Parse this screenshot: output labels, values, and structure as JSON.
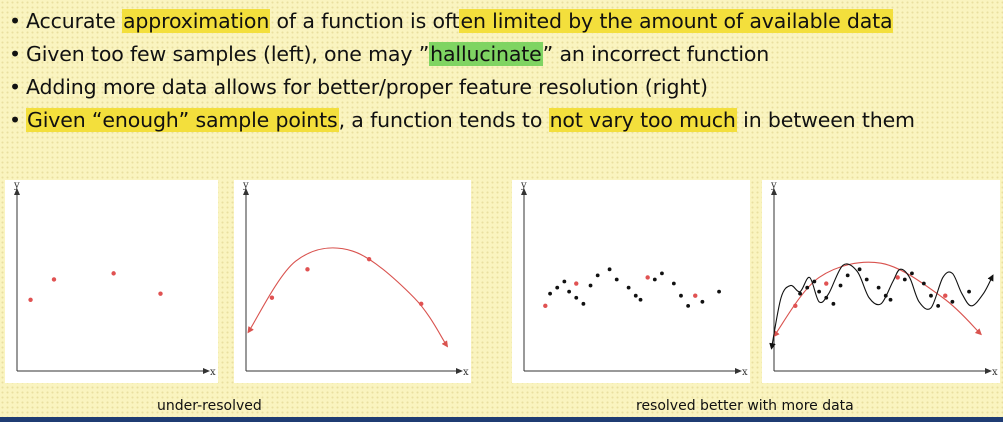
{
  "colors": {
    "highlight_yellow": "#f3df3c",
    "highlight_green": "#7fd462",
    "point_red": "#e05252",
    "curve_red": "#d9534f",
    "point_black": "#111111"
  },
  "bullets": [
    {
      "marker": "•",
      "segments": [
        {
          "text": "Accurate ",
          "hl": ""
        },
        {
          "text": "approximation",
          "hl": "yellow"
        },
        {
          "text": " of a function is oft",
          "hl": ""
        },
        {
          "text": "en limited by the amount of available data",
          "hl": "yellow"
        }
      ]
    },
    {
      "marker": "•",
      "segments": [
        {
          "text": "Given too few samples (left), one may ”",
          "hl": ""
        },
        {
          "text": "hallucinate",
          "hl": "green"
        },
        {
          "text": "” an incorrect function",
          "hl": ""
        }
      ]
    },
    {
      "marker": "•",
      "segments": [
        {
          "text": "Adding more data allows for better/proper feature resolution (right)",
          "hl": ""
        }
      ]
    },
    {
      "marker": "•",
      "segments": [
        {
          "text": "Given “enough” sample points",
          "hl": "yellow"
        },
        {
          "text": ", a function tends to ",
          "hl": ""
        },
        {
          "text": "not vary too much",
          "hl": "yellow"
        },
        {
          "text": " in between them",
          "hl": ""
        }
      ]
    }
  ],
  "plots": {
    "axis_y_label": "y",
    "axis_x_label": "x",
    "under_points": [
      [
        0.12,
        0.59
      ],
      [
        0.23,
        0.49
      ],
      [
        0.51,
        0.46
      ],
      [
        0.73,
        0.56
      ]
    ],
    "under_fit_curve": [
      [
        0.06,
        0.75
      ],
      [
        0.26,
        0.4
      ],
      [
        0.5,
        0.35
      ],
      [
        0.76,
        0.58
      ],
      [
        0.9,
        0.82
      ]
    ],
    "under_fit_points": [
      [
        0.16,
        0.58
      ],
      [
        0.31,
        0.44
      ],
      [
        0.57,
        0.39
      ],
      [
        0.79,
        0.61
      ]
    ],
    "resolved_red_points": [
      [
        0.14,
        0.62
      ],
      [
        0.27,
        0.51
      ],
      [
        0.57,
        0.48
      ],
      [
        0.77,
        0.57
      ]
    ],
    "resolved_black_points": [
      [
        0.16,
        0.56
      ],
      [
        0.19,
        0.53
      ],
      [
        0.22,
        0.5
      ],
      [
        0.24,
        0.55
      ],
      [
        0.27,
        0.58
      ],
      [
        0.3,
        0.61
      ],
      [
        0.33,
        0.52
      ],
      [
        0.36,
        0.47
      ],
      [
        0.41,
        0.44
      ],
      [
        0.44,
        0.49
      ],
      [
        0.49,
        0.53
      ],
      [
        0.52,
        0.57
      ],
      [
        0.54,
        0.59
      ],
      [
        0.6,
        0.49
      ],
      [
        0.63,
        0.46
      ],
      [
        0.68,
        0.51
      ],
      [
        0.71,
        0.57
      ],
      [
        0.74,
        0.62
      ],
      [
        0.8,
        0.6
      ],
      [
        0.87,
        0.55
      ]
    ],
    "resolved_black_curve": [
      [
        0.04,
        0.83
      ],
      [
        0.08,
        0.58
      ],
      [
        0.12,
        0.52
      ],
      [
        0.16,
        0.55
      ],
      [
        0.2,
        0.48
      ],
      [
        0.24,
        0.6
      ],
      [
        0.28,
        0.56
      ],
      [
        0.34,
        0.42
      ],
      [
        0.4,
        0.45
      ],
      [
        0.45,
        0.58
      ],
      [
        0.5,
        0.61
      ],
      [
        0.55,
        0.5
      ],
      [
        0.58,
        0.44
      ],
      [
        0.62,
        0.48
      ],
      [
        0.66,
        0.6
      ],
      [
        0.71,
        0.63
      ],
      [
        0.76,
        0.48
      ],
      [
        0.8,
        0.46
      ],
      [
        0.84,
        0.56
      ],
      [
        0.88,
        0.62
      ],
      [
        0.93,
        0.56
      ],
      [
        0.97,
        0.47
      ]
    ],
    "resolved_red_curve": [
      [
        0.05,
        0.77
      ],
      [
        0.24,
        0.48
      ],
      [
        0.5,
        0.41
      ],
      [
        0.76,
        0.58
      ],
      [
        0.92,
        0.76
      ]
    ]
  },
  "captions": {
    "left": "under-resolved",
    "right": "resolved better with more data"
  }
}
